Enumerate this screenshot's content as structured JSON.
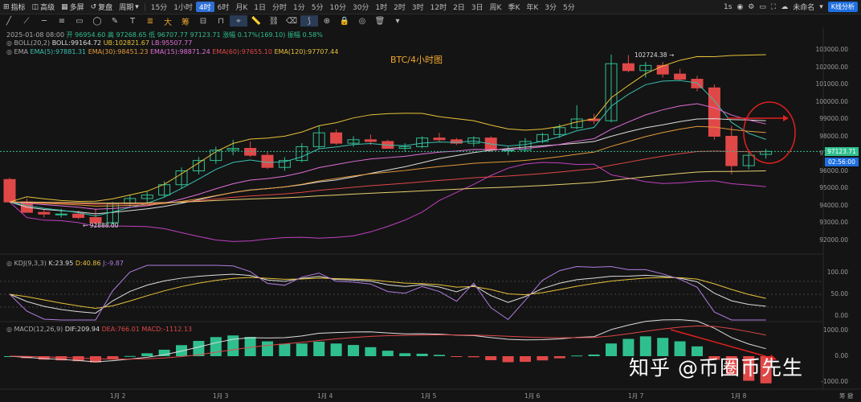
{
  "topbar": {
    "indicators_label": "指标",
    "advanced_label": "高级",
    "multi_label": "多屏",
    "replay_label": "复盘",
    "period_label": "周期",
    "intervals": [
      "15分",
      "1小时",
      "4时",
      "6时",
      "月K",
      "1日",
      "分时",
      "1分",
      "5分",
      "10分",
      "30分",
      "1时",
      "2时",
      "3时",
      "12时",
      "2日",
      "3日",
      "周K",
      "季K",
      "年K",
      "3分",
      "5分"
    ],
    "active_interval": "4时",
    "zoom_label": "1s",
    "account_label": "未命名",
    "kline_button": "K线分析"
  },
  "info": {
    "date": "2025-01-08 08:00",
    "open": "开 96954.60",
    "high": "高 97268.65",
    "low": "低 96707.77",
    "close": "97123.71",
    "change": "涨幅 0.17%(169.10)",
    "amplitude": "振幅 0.58%",
    "boll_name": "BOLL(20,2)",
    "boll": "BOLL:99164.72",
    "boll_ub": "UB:102821.67",
    "boll_lb": "LB:95507.77",
    "ema_name": "EMA",
    "ema5": "EMA(5):97881.31",
    "ema30": "EMA(30):98451.23",
    "ema15": "EMA(15):98871.24",
    "ema60": "EMA(60):97655.10",
    "ema120": "EMA(120):97707.44"
  },
  "kdj": {
    "name": "KDJ(9,3,3)",
    "k": "K:23.95",
    "d": "D:40.86",
    "j": "J:-9.87"
  },
  "macd": {
    "name": "MACD(12,26,9)",
    "dif": "DIF:209.94",
    "dea": "DEA:766.01",
    "macd": "MACD:-1112.13"
  },
  "chart_title": "BTC/4小时图",
  "annotations": {
    "high": "102724.38",
    "low": "92888.00"
  },
  "price_axis": [
    "103000.00",
    "102000.00",
    "101000.00",
    "100000.00",
    "99000.00",
    "98000.00",
    "97000.00",
    "96000.00",
    "95000.00",
    "94000.00",
    "93000.00",
    "92000.00"
  ],
  "kdj_axis": [
    "100.00",
    "50.00",
    "0.00"
  ],
  "macd_axis": [
    "1000.00",
    "0.00",
    "-1000.00"
  ],
  "current_price": "97123.71",
  "countdown": "02:56:00",
  "x_labels": [
    "1月 2",
    "1月 3",
    "1月 4",
    "1月 5",
    "1月 6",
    "1月 7",
    "1月 8"
  ],
  "axis_corner": "筹 撤",
  "watermark": "知乎 @币圈币先生",
  "colors": {
    "up": "#2fbf8f",
    "down": "#e04848",
    "accent": "#2f6fd6"
  },
  "chart_data": {
    "type": "candlestick",
    "title": "BTC/4小时图",
    "x": [
      "1月 2",
      "1月 3",
      "1月 4",
      "1月 5",
      "1月 6",
      "1月 7",
      "1月 8"
    ],
    "candles": [
      [
        95500,
        95600,
        94200,
        94200
      ],
      [
        94200,
        94400,
        93600,
        93600
      ],
      [
        93600,
        93800,
        93300,
        93500
      ],
      [
        93500,
        93800,
        93300,
        93500
      ],
      [
        93500,
        93700,
        93200,
        93300
      ],
      [
        93300,
        93800,
        92888,
        93000
      ],
      [
        93000,
        94200,
        92900,
        94100
      ],
      [
        94100,
        94600,
        93900,
        94400
      ],
      [
        94400,
        94800,
        94100,
        94600
      ],
      [
        94600,
        95400,
        94500,
        95200
      ],
      [
        95200,
        96200,
        95000,
        96000
      ],
      [
        96000,
        96800,
        95800,
        96600
      ],
      [
        96600,
        97400,
        96400,
        97200
      ],
      [
        97200,
        97800,
        96900,
        97300
      ],
      [
        97300,
        97700,
        96800,
        96900
      ],
      [
        96900,
        97100,
        96100,
        96200
      ],
      [
        96200,
        96800,
        96000,
        96600
      ],
      [
        96600,
        97600,
        96500,
        97400
      ],
      [
        97400,
        98600,
        97300,
        98200
      ],
      [
        98200,
        98400,
        97500,
        97600
      ],
      [
        97600,
        98000,
        97400,
        97800
      ],
      [
        97800,
        98100,
        97500,
        97700
      ],
      [
        97700,
        97800,
        97300,
        97300
      ],
      [
        97300,
        97600,
        97100,
        97400
      ],
      [
        97400,
        98000,
        97300,
        97900
      ],
      [
        97900,
        98200,
        97700,
        97800
      ],
      [
        97800,
        97900,
        97500,
        97600
      ],
      [
        97600,
        98000,
        97400,
        97900
      ],
      [
        97900,
        98000,
        97100,
        97200
      ],
      [
        97200,
        97400,
        96900,
        97200
      ],
      [
        97200,
        97900,
        97100,
        97700
      ],
      [
        97700,
        98200,
        97600,
        98100
      ],
      [
        98100,
        98700,
        97900,
        98500
      ],
      [
        98500,
        99800,
        98400,
        99000
      ],
      [
        99000,
        99300,
        98700,
        98900
      ],
      [
        98900,
        102724.38,
        98800,
        102200
      ],
      [
        102200,
        102700,
        101700,
        101800
      ],
      [
        101800,
        102300,
        101400,
        102100
      ],
      [
        102100,
        102300,
        101400,
        101600
      ],
      [
        101600,
        101900,
        101200,
        101300
      ],
      [
        101300,
        101500,
        100600,
        100800
      ],
      [
        100800,
        101000,
        97800,
        98000
      ],
      [
        98000,
        98600,
        95800,
        96300
      ],
      [
        96300,
        97200,
        96100,
        96900
      ],
      [
        96954.6,
        97268.65,
        96707.77,
        97123.71
      ]
    ],
    "ylim": [
      91600,
      103500
    ],
    "ema5": 97881.31,
    "ema15": 98871.24,
    "ema30": 98451.23,
    "ema60": 97655.1,
    "ema120": 97707.44,
    "boll_mid": 99164.72,
    "boll_ub": 102821.67,
    "boll_lb": 95507.77,
    "kdj_k": 23.95,
    "kdj_d": 40.86,
    "kdj_j": -9.87,
    "macd_dif": 209.94,
    "macd_dea": 766.01,
    "macd_hist": -1112.13
  }
}
